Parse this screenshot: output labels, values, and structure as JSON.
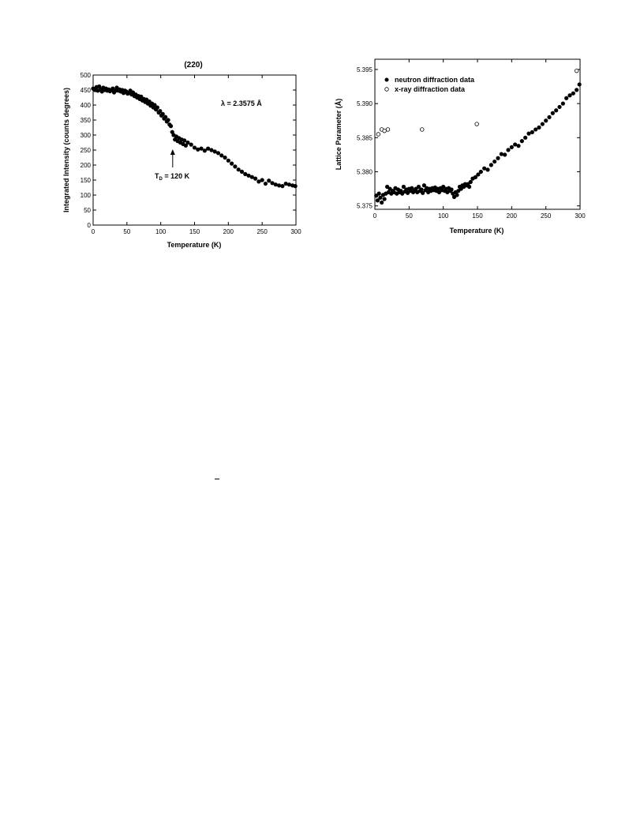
{
  "chart_data": [
    {
      "type": "scatter",
      "title": "(220)",
      "xlabel": "Temperature (K)",
      "ylabel": "Integrated Intensity (counts degrees)",
      "xlim": [
        0,
        300
      ],
      "ylim": [
        0,
        500
      ],
      "xticks": [
        0,
        50,
        100,
        150,
        200,
        250,
        300
      ],
      "yticks": [
        0,
        50,
        100,
        150,
        200,
        250,
        300,
        350,
        400,
        450,
        500
      ],
      "grid": false,
      "annotations": {
        "wavelength": "λ = 2.3575 Å",
        "transition_symbol": "T",
        "transition_sub": "D",
        "transition_rest": " = 120 K",
        "transition_x": 120,
        "transition_y": 300
      },
      "series": [
        {
          "marker": "filled-circle",
          "x": [
            0,
            3,
            5,
            7,
            9,
            11,
            13,
            15,
            17,
            19,
            21,
            23,
            25,
            27,
            29,
            31,
            33,
            35,
            37,
            39,
            41,
            43,
            45,
            47,
            49,
            51,
            53,
            55,
            57,
            59,
            61,
            63,
            65,
            67,
            69,
            71,
            73,
            75,
            77,
            79,
            81,
            83,
            85,
            87,
            89,
            91,
            93,
            95,
            97,
            99,
            101,
            103,
            105,
            107,
            109,
            111,
            113,
            115,
            117,
            119,
            121,
            123,
            125,
            127,
            129,
            131,
            133,
            135,
            137,
            140,
            145,
            150,
            155,
            160,
            165,
            170,
            175,
            180,
            185,
            190,
            195,
            200,
            205,
            210,
            215,
            220,
            225,
            230,
            235,
            240,
            245,
            250,
            255,
            260,
            265,
            270,
            275,
            280,
            285,
            290,
            295,
            299
          ],
          "y": [
            455,
            450,
            460,
            448,
            462,
            452,
            445,
            458,
            450,
            455,
            448,
            452,
            446,
            450,
            455,
            442,
            448,
            458,
            448,
            452,
            445,
            450,
            440,
            448,
            445,
            438,
            440,
            448,
            435,
            442,
            430,
            435,
            425,
            430,
            420,
            428,
            415,
            420,
            410,
            418,
            405,
            412,
            398,
            405,
            392,
            400,
            385,
            392,
            375,
            380,
            365,
            370,
            355,
            360,
            345,
            350,
            335,
            330,
            310,
            300,
            285,
            295,
            280,
            290,
            275,
            285,
            270,
            282,
            265,
            275,
            268,
            258,
            252,
            255,
            248,
            255,
            250,
            245,
            240,
            232,
            225,
            215,
            205,
            195,
            185,
            178,
            170,
            165,
            160,
            155,
            145,
            150,
            138,
            148,
            140,
            135,
            132,
            130,
            138,
            135,
            132,
            130
          ]
        }
      ]
    },
    {
      "type": "scatter",
      "xlabel": "Temperature (K)",
      "ylabel": "Lattice Parameter (Å)",
      "xlim": [
        0,
        300
      ],
      "ylim": [
        5.3745,
        5.3965
      ],
      "xticks": [
        0,
        50,
        100,
        150,
        200,
        250,
        300
      ],
      "yticks": [
        5.375,
        5.38,
        5.385,
        5.39,
        5.395
      ],
      "ytick_labels": [
        "5.375",
        "5.380",
        "5.385",
        "5.390",
        "5.395"
      ],
      "grid": false,
      "legend": "top-left",
      "series": [
        {
          "name": "neutron diffraction data",
          "marker": "filled-circle",
          "x": [
            2,
            4,
            6,
            8,
            10,
            12,
            14,
            16,
            18,
            20,
            22,
            24,
            26,
            28,
            30,
            32,
            34,
            36,
            38,
            40,
            42,
            44,
            46,
            48,
            50,
            52,
            54,
            56,
            58,
            60,
            62,
            64,
            66,
            68,
            70,
            72,
            74,
            76,
            78,
            80,
            82,
            84,
            86,
            88,
            90,
            92,
            94,
            96,
            98,
            100,
            102,
            104,
            106,
            108,
            110,
            112,
            114,
            116,
            118,
            120,
            122,
            124,
            126,
            128,
            130,
            132,
            134,
            136,
            138,
            140,
            143,
            147,
            151,
            155,
            160,
            165,
            170,
            175,
            180,
            185,
            190,
            195,
            200,
            205,
            210,
            215,
            220,
            225,
            230,
            235,
            240,
            245,
            250,
            255,
            260,
            265,
            270,
            275,
            280,
            285,
            290,
            295,
            299
          ],
          "y": [
            5.3765,
            5.3758,
            5.3768,
            5.3762,
            5.3755,
            5.3766,
            5.376,
            5.3768,
            5.3778,
            5.377,
            5.3775,
            5.3768,
            5.3772,
            5.377,
            5.3776,
            5.3768,
            5.3774,
            5.377,
            5.3772,
            5.3768,
            5.3778,
            5.3771,
            5.3774,
            5.3769,
            5.3775,
            5.3772,
            5.3776,
            5.377,
            5.3772,
            5.3775,
            5.377,
            5.3778,
            5.3772,
            5.3774,
            5.3769,
            5.378,
            5.3773,
            5.3776,
            5.377,
            5.3775,
            5.3772,
            5.3776,
            5.3773,
            5.3777,
            5.3772,
            5.3775,
            5.377,
            5.3776,
            5.3773,
            5.3778,
            5.3772,
            5.3775,
            5.377,
            5.3776,
            5.3772,
            5.3774,
            5.3768,
            5.3763,
            5.377,
            5.3766,
            5.3772,
            5.3778,
            5.3775,
            5.378,
            5.3778,
            5.3782,
            5.378,
            5.3782,
            5.3778,
            5.3785,
            5.379,
            5.3792,
            5.3796,
            5.38,
            5.3805,
            5.3803,
            5.381,
            5.3815,
            5.382,
            5.3826,
            5.3825,
            5.3832,
            5.3836,
            5.384,
            5.3838,
            5.3845,
            5.385,
            5.3856,
            5.3858,
            5.3862,
            5.3865,
            5.387,
            5.3875,
            5.388,
            5.3886,
            5.389,
            5.3895,
            5.39,
            5.3908,
            5.3912,
            5.3915,
            5.392,
            5.3928
          ]
        },
        {
          "name": "x-ray diffraction data",
          "marker": "open-circle",
          "x": [
            5,
            10,
            14,
            19,
            69,
            149,
            295
          ],
          "y": [
            5.3855,
            5.3862,
            5.386,
            5.3862,
            5.3862,
            5.387,
            5.3948
          ]
        }
      ]
    }
  ],
  "page": {
    "stray_mark": "–"
  }
}
